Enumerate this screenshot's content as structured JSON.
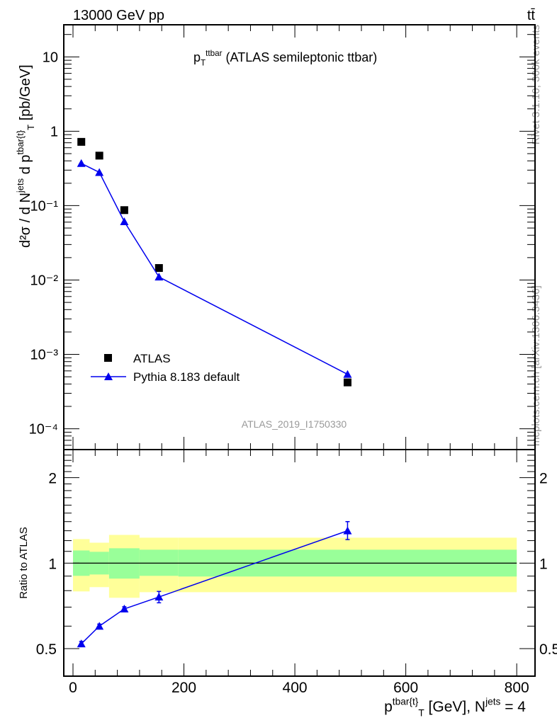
{
  "header": {
    "left": "13000 GeV pp",
    "right": "tt̄"
  },
  "side": {
    "rivet": "Rivet 3.1.10,  300k events",
    "mcplots": "mcplots.cern.ch [arXiv:1306.3436]"
  },
  "watermark": "ATLAS_2019_I1750330",
  "chart_data": [
    {
      "type": "scatter",
      "title": "p_T^{ttbar} (ATLAS semileptonic ttbar)",
      "title_main": "p",
      "title_sub": "T",
      "title_sup": "ttbar",
      "title_rest": " (ATLAS semileptonic ttbar)",
      "ylabel": "d²σ / d N^jets d p^tbar{t}_T [pb/GeV]",
      "yscale": "log",
      "ylim": [
        5.25e-05,
        27
      ],
      "xlim": [
        -16.6,
        833
      ],
      "yticks": [
        {
          "v": 10,
          "label": "10"
        },
        {
          "v": 1,
          "label": "1"
        },
        {
          "v": 0.1,
          "label": "10⁻¹"
        },
        {
          "v": 0.01,
          "label": "10⁻²"
        },
        {
          "v": 0.001,
          "label": "10⁻³"
        },
        {
          "v": 0.0001,
          "label": "10⁻⁴"
        }
      ],
      "legend": {
        "placement": "bottom-left",
        "entries": [
          "ATLAS",
          "Pythia 8.183 default"
        ]
      },
      "series": [
        {
          "name": "ATLAS",
          "color": "#000000",
          "marker": "square",
          "x": [
            15,
            47.5,
            92.5,
            155,
            495
          ],
          "y": [
            0.72,
            0.47,
            0.087,
            0.0145,
            0.00042
          ]
        },
        {
          "name": "Pythia 8.183 default",
          "color": "#0000ee",
          "marker": "triangle",
          "x": [
            15,
            47.5,
            92.5,
            155,
            495
          ],
          "y": [
            0.37,
            0.28,
            0.061,
            0.011,
            0.00054
          ]
        }
      ]
    },
    {
      "type": "line",
      "ylabel": "Ratio to ATLAS",
      "yscale": "log",
      "ylim": [
        0.4,
        2.51
      ],
      "xlim": [
        -16.6,
        833
      ],
      "yticks": [
        {
          "v": 0.5,
          "label": "0.5"
        },
        {
          "v": 1,
          "label": "1"
        },
        {
          "v": 2,
          "label": "2"
        }
      ],
      "xticks": [
        0,
        200,
        400,
        600,
        800
      ],
      "xlabel": "p^tbar{t}_T [GeV], N^jets = 4",
      "bins": [
        [
          0,
          30
        ],
        [
          30,
          65
        ],
        [
          65,
          120
        ],
        [
          120,
          190
        ],
        [
          190,
          800
        ]
      ],
      "band_yellow": [
        [
          0.795,
          1.215
        ],
        [
          0.823,
          1.18
        ],
        [
          0.755,
          1.257
        ],
        [
          0.79,
          1.229
        ],
        [
          0.79,
          1.229
        ]
      ],
      "band_green": [
        [
          0.902,
          1.108
        ],
        [
          0.912,
          1.096
        ],
        [
          0.882,
          1.128
        ],
        [
          0.902,
          1.115
        ],
        [
          0.897,
          1.115
        ]
      ],
      "series": [
        {
          "name": "Pythia 8.183 default",
          "color": "#0000ee",
          "x": [
            15,
            47.5,
            92.5,
            155,
            495
          ],
          "y": [
            0.52,
            0.6,
            0.69,
            0.76,
            1.3
          ],
          "err_lo": [
            0.01,
            0.01,
            0.012,
            0.035,
            0.09
          ],
          "err_hi": [
            0.01,
            0.01,
            0.012,
            0.035,
            0.1
          ]
        }
      ]
    }
  ]
}
